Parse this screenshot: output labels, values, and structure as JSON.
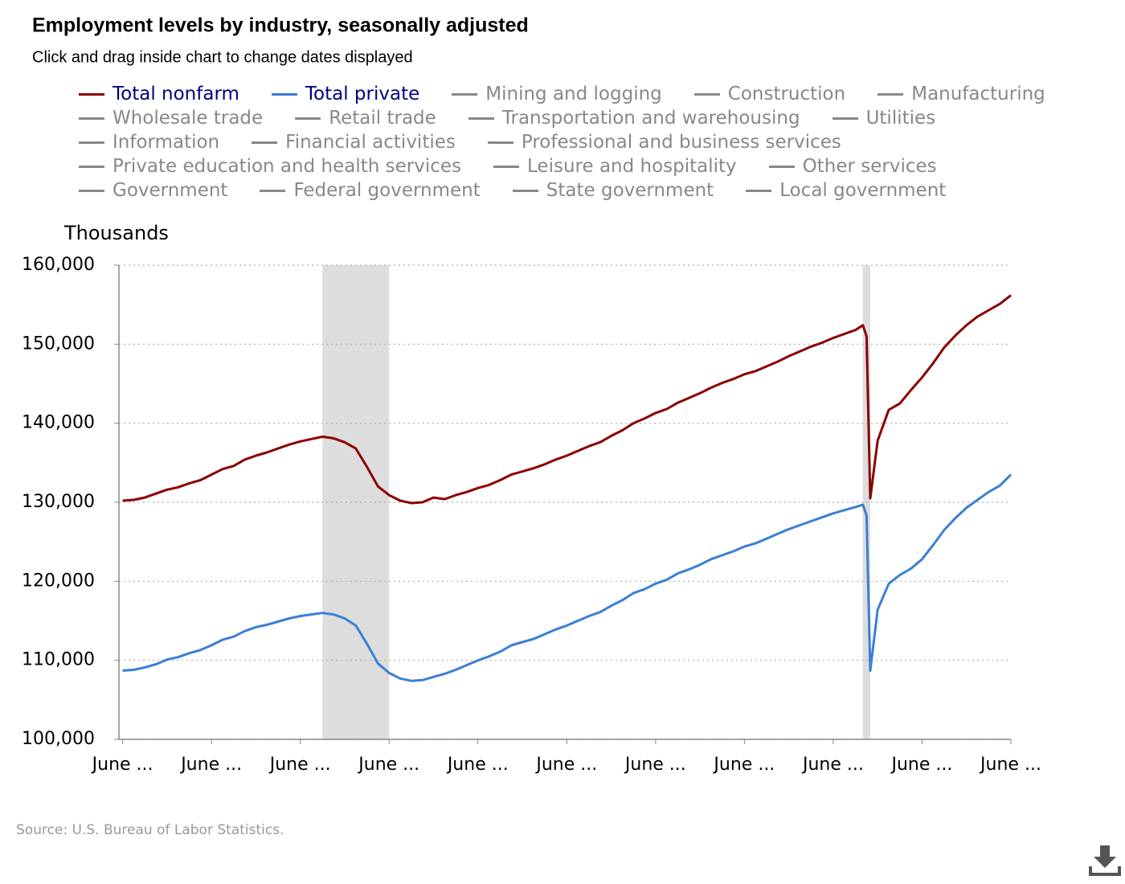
{
  "chart_data": {
    "type": "line",
    "title": "Employment levels by industry, seasonally adjusted",
    "subtitle": "Click and drag inside chart to change dates displayed",
    "y_axis_label": "Thousands",
    "source": "Source: U.S. Bureau of Labor Statistics.",
    "x": [
      0,
      3,
      6,
      9,
      12,
      15,
      18,
      21,
      24,
      27,
      30,
      33,
      36,
      39,
      42,
      45,
      48,
      51,
      54,
      57,
      60,
      63,
      66,
      69,
      72,
      75,
      78,
      81,
      84,
      87,
      90,
      93,
      96,
      99,
      102,
      105,
      108,
      111,
      114,
      117,
      120,
      123,
      126,
      129,
      132,
      135,
      138,
      141,
      144,
      147,
      150,
      153,
      156,
      159,
      162,
      165,
      168,
      171,
      174,
      177,
      180,
      183,
      186,
      189,
      192,
      195,
      198,
      200,
      201,
      202,
      204,
      207,
      210,
      213,
      216,
      219,
      222,
      225,
      228,
      231,
      234,
      237,
      240
    ],
    "series": [
      {
        "name": "Total nonfarm",
        "color": "#8b0000",
        "values": [
          130200,
          130300,
          130600,
          131100,
          131600,
          131900,
          132400,
          132800,
          133500,
          134200,
          134600,
          135400,
          135900,
          136300,
          136800,
          137300,
          137700,
          138000,
          138300,
          138100,
          137600,
          136800,
          134500,
          132000,
          130900,
          130200,
          129900,
          130000,
          130600,
          130400,
          130900,
          131300,
          131800,
          132200,
          132800,
          133500,
          133900,
          134300,
          134800,
          135400,
          135900,
          136500,
          137100,
          137600,
          138400,
          139100,
          140000,
          140600,
          141300,
          141800,
          142600,
          143200,
          143800,
          144500,
          145100,
          145600,
          146200,
          146600,
          147200,
          147800,
          148500,
          149100,
          149700,
          150200,
          150800,
          151300,
          151800,
          152400,
          151000,
          130500,
          137800,
          141700,
          142500,
          144200,
          145800,
          147600,
          149600,
          151100,
          152400,
          153500,
          154300,
          155100,
          156200
        ]
      },
      {
        "name": "Total private",
        "color": "#3a7fd5",
        "values": [
          108700,
          108800,
          109100,
          109500,
          110100,
          110400,
          110900,
          111300,
          111900,
          112600,
          113000,
          113700,
          114200,
          114500,
          114900,
          115300,
          115600,
          115800,
          116000,
          115800,
          115300,
          114400,
          112100,
          109600,
          108400,
          107700,
          107400,
          107500,
          107900,
          108300,
          108800,
          109400,
          110000,
          110500,
          111100,
          111900,
          112300,
          112700,
          113300,
          113900,
          114400,
          115000,
          115600,
          116100,
          116900,
          117600,
          118500,
          119000,
          119700,
          120200,
          121000,
          121500,
          122100,
          122800,
          123300,
          123800,
          124400,
          124800,
          125400,
          126000,
          126600,
          127100,
          127600,
          128100,
          128600,
          129000,
          129400,
          129700,
          128300,
          108700,
          116400,
          119700,
          120800,
          121600,
          122800,
          124600,
          126500,
          128000,
          129300,
          130300,
          131300,
          132100,
          133500
        ]
      }
    ],
    "inactive_series": [
      "Mining and logging",
      "Construction",
      "Manufacturing",
      "Wholesale trade",
      "Retail trade",
      "Transportation and warehousing",
      "Utilities",
      "Information",
      "Financial activities",
      "Professional and business services",
      "Private education and health services",
      "Leisure and hospitality",
      "Other services",
      "Government",
      "Federal government",
      "State government",
      "Local government"
    ],
    "inactive_color": "#888888",
    "shaded_ranges": [
      [
        54,
        72
      ],
      [
        200,
        202
      ]
    ],
    "shade_color": "#dddddd",
    "xlim": [
      -1,
      240
    ],
    "xticks": [
      {
        "value": 0,
        "label": "June ..."
      },
      {
        "value": 24,
        "label": "June ..."
      },
      {
        "value": 48,
        "label": "June ..."
      },
      {
        "value": 72,
        "label": "June ..."
      },
      {
        "value": 96,
        "label": "June ..."
      },
      {
        "value": 120,
        "label": "June ..."
      },
      {
        "value": 144,
        "label": "June ..."
      },
      {
        "value": 168,
        "label": "June ..."
      },
      {
        "value": 192,
        "label": "June ..."
      },
      {
        "value": 216,
        "label": "June ..."
      },
      {
        "value": 240,
        "label": "June ..."
      }
    ],
    "ylim": [
      100000,
      160000
    ],
    "yticks": [
      {
        "value": 100000,
        "label": "100,000"
      },
      {
        "value": 110000,
        "label": "110,000"
      },
      {
        "value": 120000,
        "label": "120,000"
      },
      {
        "value": 130000,
        "label": "130,000"
      },
      {
        "value": 140000,
        "label": "140,000"
      },
      {
        "value": 150000,
        "label": "150,000"
      },
      {
        "value": 160000,
        "label": "160,000"
      }
    ],
    "grid": true
  }
}
